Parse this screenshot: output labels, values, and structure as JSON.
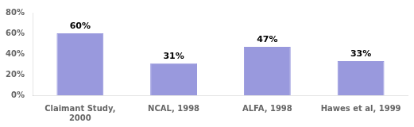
{
  "chart_data": {
    "type": "bar",
    "categories": [
      "Claimant Study,\n2000",
      "NCAL, 1998",
      "ALFA, 1998",
      "Hawes et al, 1999"
    ],
    "values": [
      60,
      31,
      47,
      33
    ],
    "value_labels": [
      "60%",
      "31%",
      "47%",
      "33%"
    ],
    "data_labels": true,
    "color": "#9999dd",
    "ylim": [
      0,
      80
    ],
    "yticks": [
      {
        "value": 0,
        "label": "0%"
      },
      {
        "value": 20,
        "label": "20%"
      },
      {
        "value": 40,
        "label": "40%"
      },
      {
        "value": 60,
        "label": "60%"
      },
      {
        "value": 80,
        "label": "80%"
      }
    ],
    "grid": false
  }
}
